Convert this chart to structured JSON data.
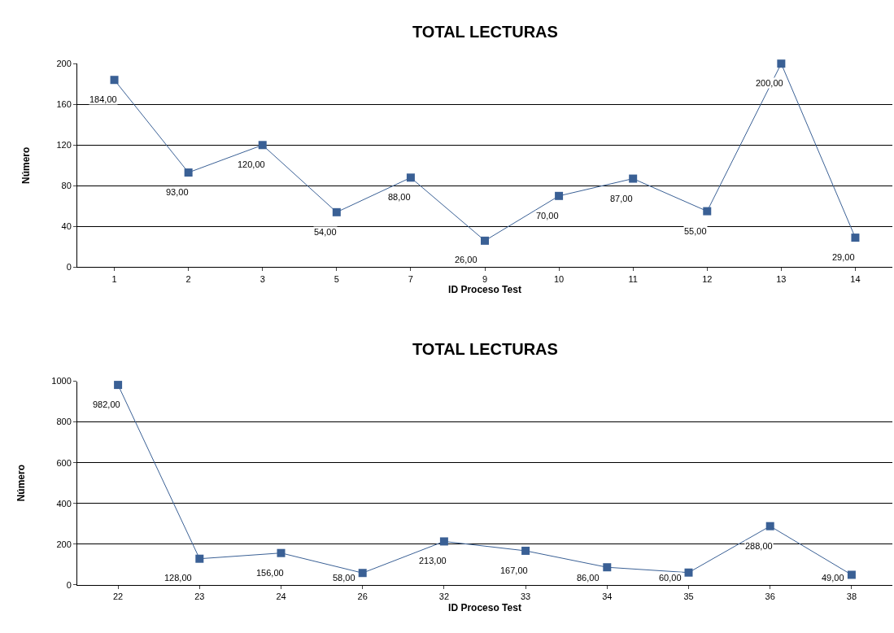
{
  "chart_data": [
    {
      "type": "line",
      "title": "TOTAL LECTURAS",
      "xlabel": "ID Proceso Test",
      "ylabel": "Número",
      "categories": [
        "1",
        "2",
        "3",
        "5",
        "7",
        "9",
        "10",
        "11",
        "12",
        "13",
        "14"
      ],
      "series": [
        {
          "color": "#3a6095",
          "values": [
            184,
            93,
            120,
            54,
            88,
            26,
            70,
            87,
            55,
            200,
            29
          ],
          "value_labels": [
            "184,00",
            "93,00",
            "120,00",
            "54,00",
            "88,00",
            "26,00",
            "70,00",
            "87,00",
            "55,00",
            "200,00",
            "29,00"
          ]
        }
      ],
      "ylim": [
        0,
        200
      ],
      "yticks": [
        0,
        40,
        80,
        120,
        160,
        200
      ],
      "grid": "y",
      "marker": "square",
      "line_style": "solid"
    },
    {
      "type": "line",
      "title": "TOTAL LECTURAS",
      "xlabel": "ID Proceso Test",
      "ylabel": "Número",
      "categories": [
        "22",
        "23",
        "24",
        "26",
        "32",
        "33",
        "34",
        "35",
        "36",
        "38"
      ],
      "series": [
        {
          "color": "#3a6095",
          "values": [
            982,
            128,
            156,
            58,
            213,
            167,
            86,
            60,
            288,
            49
          ],
          "value_labels": [
            "982,00",
            "128,00",
            "156,00",
            "58,00",
            "213,00",
            "167,00",
            "86,00",
            "60,00",
            "288,00",
            "49,00"
          ]
        }
      ],
      "ylim": [
        0,
        1000
      ],
      "yticks": [
        0,
        200,
        400,
        600,
        800,
        1000
      ],
      "grid": "y",
      "marker": "square",
      "line_style": "solid"
    }
  ]
}
